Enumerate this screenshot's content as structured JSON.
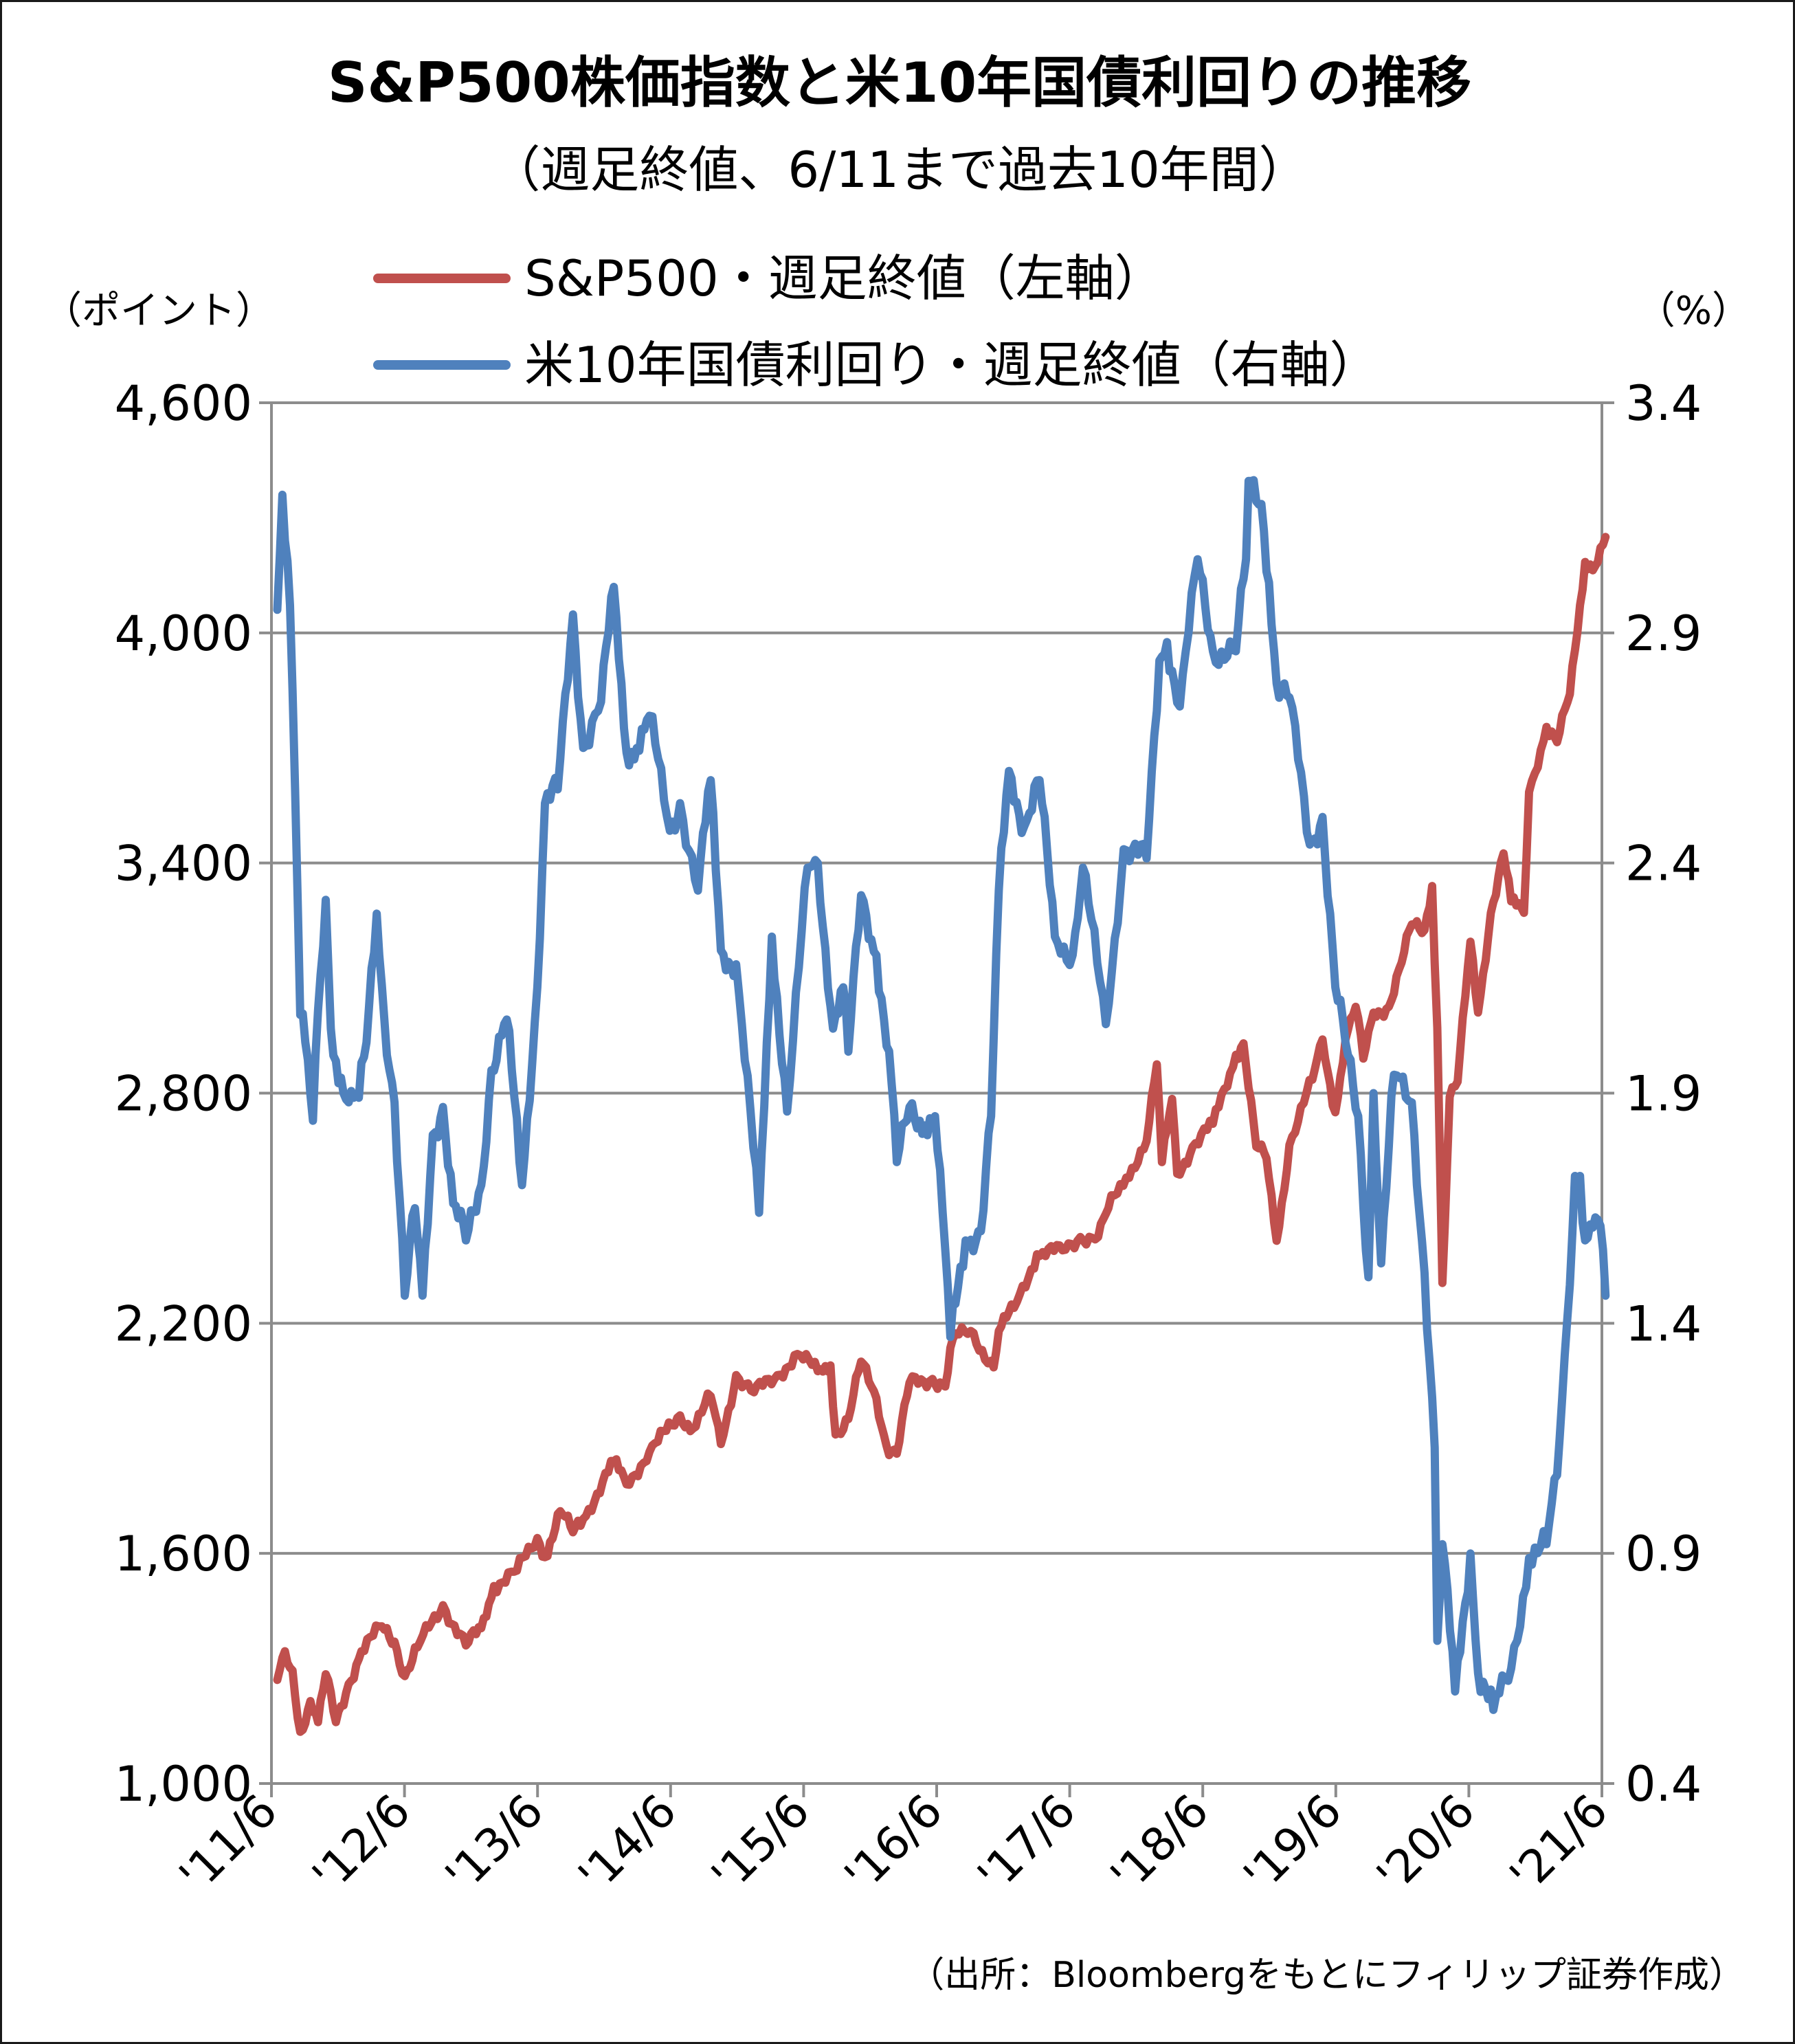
{
  "chart_data": {
    "type": "line",
    "title": "S&P500株価指数と米10年国債利回りの推移",
    "subtitle": "（週足終値、6/11まで過去10年間）",
    "y_left_label": "（ポイント）",
    "y_right_label": "（%）",
    "y_left_lim": [
      1000,
      4600
    ],
    "y_left_ticks": [
      "1,000",
      "1,600",
      "2,200",
      "2,800",
      "3,400",
      "4,000",
      "4,600"
    ],
    "y_right_lim": [
      0.4,
      3.4
    ],
    "y_right_ticks": [
      "0.4",
      "0.9",
      "1.4",
      "1.9",
      "2.4",
      "2.9",
      "3.4"
    ],
    "x_ticks": [
      "'11/6",
      "'12/6",
      "'13/6",
      "'14/6",
      "'15/6",
      "'16/6",
      "'17/6",
      "'18/6",
      "'19/6",
      "'20/6",
      "'21/6"
    ],
    "x_range": [
      "2011-06",
      "2021-06"
    ],
    "grid": "horizontal",
    "legend_position": "top",
    "series": [
      {
        "name": "S&P500・週足終値（左軸）",
        "axis": "left",
        "color": "#c0504d",
        "points": [
          [
            "2011-06-17",
            1270
          ],
          [
            "2011-07-08",
            1345
          ],
          [
            "2011-07-29",
            1295
          ],
          [
            "2011-08-12",
            1170
          ],
          [
            "2011-08-26",
            1140
          ],
          [
            "2011-09-16",
            1215
          ],
          [
            "2011-10-07",
            1160
          ],
          [
            "2011-10-28",
            1285
          ],
          [
            "2011-11-25",
            1160
          ],
          [
            "2011-12-30",
            1260
          ],
          [
            "2012-02-03",
            1345
          ],
          [
            "2012-03-30",
            1410
          ],
          [
            "2012-05-04",
            1370
          ],
          [
            "2012-06-01",
            1280
          ],
          [
            "2012-07-06",
            1355
          ],
          [
            "2012-09-14",
            1465
          ],
          [
            "2012-11-16",
            1360
          ],
          [
            "2012-12-28",
            1405
          ],
          [
            "2013-02-01",
            1515
          ],
          [
            "2013-04-05",
            1555
          ],
          [
            "2013-05-31",
            1640
          ],
          [
            "2013-06-21",
            1590
          ],
          [
            "2013-08-02",
            1710
          ],
          [
            "2013-09-06",
            1655
          ],
          [
            "2013-10-04",
            1690
          ],
          [
            "2013-12-27",
            1840
          ],
          [
            "2014-01-31",
            1780
          ],
          [
            "2014-04-04",
            1865
          ],
          [
            "2014-06-27",
            1960
          ],
          [
            "2014-08-01",
            1925
          ],
          [
            "2014-09-19",
            2010
          ],
          [
            "2014-10-17",
            1885
          ],
          [
            "2014-11-28",
            2065
          ],
          [
            "2015-01-16",
            2020
          ],
          [
            "2015-03-13",
            2055
          ],
          [
            "2015-05-15",
            2120
          ],
          [
            "2015-07-10",
            2075
          ],
          [
            "2015-08-14",
            2090
          ],
          [
            "2015-08-28",
            1910
          ],
          [
            "2015-10-02",
            1950
          ],
          [
            "2015-11-06",
            2100
          ],
          [
            "2015-12-18",
            2005
          ],
          [
            "2016-01-15",
            1880
          ],
          [
            "2016-02-12",
            1860
          ],
          [
            "2016-03-18",
            2045
          ],
          [
            "2016-05-20",
            2055
          ],
          [
            "2016-06-24",
            2035
          ],
          [
            "2016-07-15",
            2160
          ],
          [
            "2016-09-02",
            2180
          ],
          [
            "2016-11-04",
            2085
          ],
          [
            "2016-11-18",
            2180
          ],
          [
            "2016-12-30",
            2240
          ],
          [
            "2017-03-03",
            2380
          ],
          [
            "2017-05-12",
            2390
          ],
          [
            "2017-06-30",
            2425
          ],
          [
            "2017-08-18",
            2425
          ],
          [
            "2017-09-15",
            2500
          ],
          [
            "2017-11-03",
            2580
          ],
          [
            "2017-12-29",
            2675
          ],
          [
            "2018-01-26",
            2875
          ],
          [
            "2018-02-09",
            2620
          ],
          [
            "2018-03-09",
            2785
          ],
          [
            "2018-03-23",
            2590
          ],
          [
            "2018-05-04",
            2660
          ],
          [
            "2018-06-29",
            2720
          ],
          [
            "2018-08-31",
            2900
          ],
          [
            "2018-09-21",
            2930
          ],
          [
            "2018-10-26",
            2660
          ],
          [
            "2018-11-23",
            2630
          ],
          [
            "2018-12-21",
            2415
          ],
          [
            "2019-01-25",
            2665
          ],
          [
            "2019-03-29",
            2835
          ],
          [
            "2019-04-26",
            2940
          ],
          [
            "2019-05-31",
            2750
          ],
          [
            "2019-06-28",
            2940
          ],
          [
            "2019-07-26",
            3025
          ],
          [
            "2019-08-16",
            2890
          ],
          [
            "2019-09-13",
            3010
          ],
          [
            "2019-10-25",
            3025
          ],
          [
            "2019-11-29",
            3140
          ],
          [
            "2019-12-27",
            3240
          ],
          [
            "2020-01-31",
            3225
          ],
          [
            "2020-02-21",
            3340
          ],
          [
            "2020-03-06",
            2970
          ],
          [
            "2020-03-20",
            2305
          ],
          [
            "2020-04-09",
            2790
          ],
          [
            "2020-05-01",
            2830
          ],
          [
            "2020-06-05",
            3195
          ],
          [
            "2020-06-26",
            3010
          ],
          [
            "2020-07-31",
            3270
          ],
          [
            "2020-09-04",
            3425
          ],
          [
            "2020-09-25",
            3300
          ],
          [
            "2020-10-30",
            3270
          ],
          [
            "2020-11-13",
            3585
          ],
          [
            "2020-12-31",
            3755
          ],
          [
            "2021-01-29",
            3715
          ],
          [
            "2021-03-05",
            3840
          ],
          [
            "2021-04-16",
            4185
          ],
          [
            "2021-05-14",
            4175
          ],
          [
            "2021-06-11",
            4250
          ]
        ]
      },
      {
        "name": "米10年国債利回り・週足終値（右軸）",
        "axis": "right",
        "color": "#4f81bd",
        "points": [
          [
            "2011-06-17",
            2.95
          ],
          [
            "2011-07-01",
            3.2
          ],
          [
            "2011-07-22",
            2.96
          ],
          [
            "2011-08-05",
            2.56
          ],
          [
            "2011-08-19",
            2.07
          ],
          [
            "2011-09-02",
            2.01
          ],
          [
            "2011-09-23",
            1.84
          ],
          [
            "2011-10-07",
            2.08
          ],
          [
            "2011-10-28",
            2.32
          ],
          [
            "2011-11-11",
            2.04
          ],
          [
            "2011-11-25",
            1.97
          ],
          [
            "2011-12-30",
            1.88
          ],
          [
            "2012-01-27",
            1.89
          ],
          [
            "2012-02-17",
            2.01
          ],
          [
            "2012-03-16",
            2.29
          ],
          [
            "2012-04-06",
            2.06
          ],
          [
            "2012-05-04",
            1.88
          ],
          [
            "2012-06-01",
            1.46
          ],
          [
            "2012-06-29",
            1.65
          ],
          [
            "2012-07-20",
            1.46
          ],
          [
            "2012-08-17",
            1.81
          ],
          [
            "2012-09-14",
            1.87
          ],
          [
            "2012-10-12",
            1.66
          ],
          [
            "2012-11-16",
            1.58
          ],
          [
            "2012-12-28",
            1.7
          ],
          [
            "2013-01-25",
            1.95
          ],
          [
            "2013-03-08",
            2.06
          ],
          [
            "2013-04-19",
            1.7
          ],
          [
            "2013-05-31",
            2.13
          ],
          [
            "2013-06-21",
            2.53
          ],
          [
            "2013-07-26",
            2.56
          ],
          [
            "2013-09-06",
            2.94
          ],
          [
            "2013-10-04",
            2.65
          ],
          [
            "2013-11-22",
            2.75
          ],
          [
            "2013-12-27",
            3.0
          ],
          [
            "2014-01-31",
            2.64
          ],
          [
            "2014-02-28",
            2.65
          ],
          [
            "2014-04-04",
            2.72
          ],
          [
            "2014-05-30",
            2.47
          ],
          [
            "2014-06-27",
            2.53
          ],
          [
            "2014-08-15",
            2.34
          ],
          [
            "2014-09-19",
            2.58
          ],
          [
            "2014-10-17",
            2.21
          ],
          [
            "2014-11-28",
            2.18
          ],
          [
            "2015-01-30",
            1.64
          ],
          [
            "2015-03-06",
            2.24
          ],
          [
            "2015-04-17",
            1.86
          ],
          [
            "2015-06-12",
            2.39
          ],
          [
            "2015-07-10",
            2.4
          ],
          [
            "2015-08-21",
            2.04
          ],
          [
            "2015-09-18",
            2.13
          ],
          [
            "2015-10-02",
            1.99
          ],
          [
            "2015-11-06",
            2.33
          ],
          [
            "2015-12-18",
            2.2
          ],
          [
            "2016-01-29",
            1.92
          ],
          [
            "2016-02-12",
            1.75
          ],
          [
            "2016-03-18",
            1.87
          ],
          [
            "2016-04-29",
            1.83
          ],
          [
            "2016-05-27",
            1.85
          ],
          [
            "2016-06-24",
            1.56
          ],
          [
            "2016-07-08",
            1.37
          ],
          [
            "2016-08-19",
            1.58
          ],
          [
            "2016-09-30",
            1.6
          ],
          [
            "2016-10-28",
            1.85
          ],
          [
            "2016-11-18",
            2.34
          ],
          [
            "2016-12-16",
            2.6
          ],
          [
            "2017-01-27",
            2.48
          ],
          [
            "2017-03-10",
            2.58
          ],
          [
            "2017-04-21",
            2.24
          ],
          [
            "2017-06-09",
            2.2
          ],
          [
            "2017-07-07",
            2.39
          ],
          [
            "2017-09-08",
            2.05
          ],
          [
            "2017-10-27",
            2.43
          ],
          [
            "2017-12-29",
            2.41
          ],
          [
            "2018-02-02",
            2.84
          ],
          [
            "2018-02-23",
            2.88
          ],
          [
            "2018-03-30",
            2.74
          ],
          [
            "2018-05-18",
            3.06
          ],
          [
            "2018-06-29",
            2.86
          ],
          [
            "2018-08-31",
            2.86
          ],
          [
            "2018-09-28",
            3.06
          ],
          [
            "2018-10-05",
            3.23
          ],
          [
            "2018-11-09",
            3.18
          ],
          [
            "2018-11-30",
            3.01
          ],
          [
            "2018-12-21",
            2.79
          ],
          [
            "2019-01-25",
            2.76
          ],
          [
            "2019-03-22",
            2.44
          ],
          [
            "2019-04-26",
            2.5
          ],
          [
            "2019-05-31",
            2.13
          ],
          [
            "2019-06-28",
            2.01
          ],
          [
            "2019-08-02",
            1.85
          ],
          [
            "2019-08-30",
            1.5
          ],
          [
            "2019-09-13",
            1.9
          ],
          [
            "2019-10-04",
            1.53
          ],
          [
            "2019-11-08",
            1.94
          ],
          [
            "2019-12-27",
            1.88
          ],
          [
            "2020-01-31",
            1.51
          ],
          [
            "2020-02-28",
            1.13
          ],
          [
            "2020-03-06",
            0.71
          ],
          [
            "2020-03-20",
            0.92
          ],
          [
            "2020-04-24",
            0.6
          ],
          [
            "2020-06-05",
            0.9
          ],
          [
            "2020-06-26",
            0.64
          ],
          [
            "2020-08-07",
            0.56
          ],
          [
            "2020-09-25",
            0.65
          ],
          [
            "2020-11-13",
            0.89
          ],
          [
            "2020-12-31",
            0.92
          ],
          [
            "2021-01-29",
            1.07
          ],
          [
            "2021-02-26",
            1.41
          ],
          [
            "2021-03-19",
            1.72
          ],
          [
            "2021-04-02",
            1.72
          ],
          [
            "2021-04-16",
            1.58
          ],
          [
            "2021-05-14",
            1.63
          ],
          [
            "2021-06-04",
            1.56
          ],
          [
            "2021-06-11",
            1.46
          ]
        ]
      }
    ]
  },
  "source": "（出所：Bloombergをもとにフィリップ証券作成）"
}
